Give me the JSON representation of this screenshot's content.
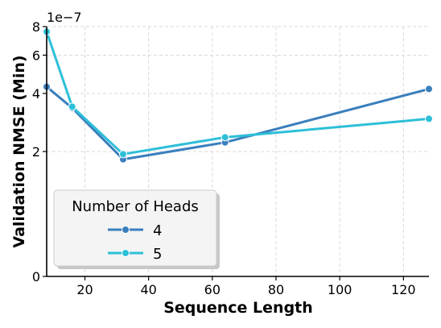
{
  "chart_data": {
    "type": "line",
    "title": "",
    "xlabel": "Sequence Length",
    "ylabel": "Validation NMSE (Min)",
    "y_scale": "symlog",
    "y_offset_text": "1e−7",
    "y_unit_factor": 1e-07,
    "xlim": [
      8,
      128
    ],
    "ylim": [
      0,
      8
    ],
    "x_ticks": [
      20,
      40,
      60,
      80,
      100,
      120
    ],
    "y_ticks": [
      0,
      2,
      4,
      6,
      8
    ],
    "grid": true,
    "legend": {
      "title": "Number of Heads",
      "position": "lower-left"
    },
    "series": [
      {
        "name": "4",
        "color": "#3a7fbd",
        "x": [
          8,
          16,
          32,
          64,
          128
        ],
        "y": [
          4.3,
          3.4,
          1.8,
          2.25,
          4.2
        ]
      },
      {
        "name": "5",
        "color": "#2ebfd8",
        "x": [
          8,
          16,
          32,
          64,
          128
        ],
        "y": [
          7.6,
          3.45,
          1.93,
          2.4,
          3.0
        ]
      }
    ]
  }
}
